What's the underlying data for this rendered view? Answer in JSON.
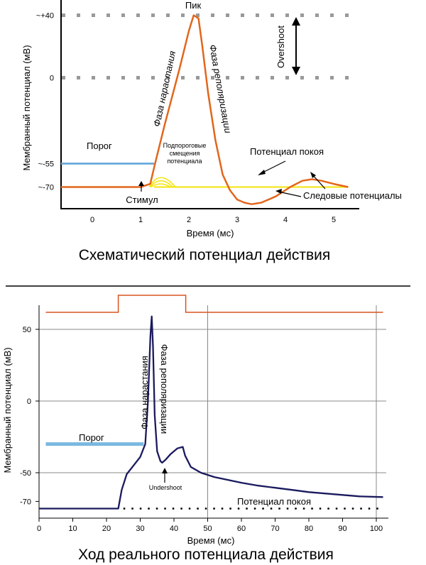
{
  "chart_data": [
    {
      "type": "line",
      "title": "Схематический потенциал действия",
      "xlabel": "Время (мс)",
      "ylabel": "Мембранный потенциал (мВ)",
      "xlim": [
        -0.65,
        5.65
      ],
      "ylim": [
        -80,
        46
      ],
      "x_ticks": [
        0,
        1,
        2,
        3,
        4,
        5
      ],
      "y_ticks": [
        {
          "value": 40,
          "label": "~+40"
        },
        {
          "value": 0,
          "label": "0"
        },
        {
          "value": -55,
          "label": "~-55"
        },
        {
          "value": -70,
          "label": "~-70"
        }
      ],
      "grid": "dotted lines at 40 and 0",
      "series": [
        {
          "name": "",
          "color": "#e2661c",
          "x": [
            -0.65,
            1.0,
            1.2,
            1.3,
            1.5,
            1.8,
            2.0,
            2.1,
            2.2,
            2.28,
            2.4,
            2.55,
            2.7,
            2.85,
            3.0,
            3.15,
            3.3,
            3.5,
            3.8,
            4.1,
            4.35,
            4.55,
            4.75,
            5.0,
            5.3
          ],
          "y": [
            -70,
            -70,
            -68,
            -55,
            -30,
            5,
            30,
            40,
            38,
            20,
            -10,
            -40,
            -62,
            -72,
            -78,
            -80,
            -81,
            -80,
            -76,
            -70,
            -66,
            -65,
            -66,
            -68,
            -70
          ]
        },
        {
          "name": "Порог",
          "color": "#5ba4d8",
          "x": [
            -0.65,
            1.28
          ],
          "y": [
            -55,
            -55
          ]
        },
        {
          "name": "Потенциал покоя",
          "color": "#f3e40a",
          "x": [
            1.28,
            5.3
          ],
          "y": [
            -70,
            -70
          ]
        }
      ],
      "subthreshold_bumps": [
        {
          "x_start": 1.18,
          "x_peak": 1.4,
          "x_end": 1.72,
          "y_peak": -64
        },
        {
          "x_start": 1.2,
          "x_peak": 1.4,
          "x_end": 1.67,
          "y_peak": -66
        },
        {
          "x_start": 1.22,
          "x_peak": 1.4,
          "x_end": 1.62,
          "y_peak": -68
        }
      ],
      "annotations": {
        "peak": "Пик",
        "rising": "Фаза нарастания",
        "repolarization": "Фаза реполяризации",
        "overshoot": "Overshoot",
        "threshold": "Порог",
        "subthreshold": [
          "Подпороговые",
          "смещения",
          "потенциала"
        ],
        "resting": "Потенциал покоя",
        "stimulus": "Стимул",
        "after": "Следовые потенциалы"
      }
    },
    {
      "type": "line",
      "title": "Ход реального потенциала действия",
      "xlabel": "Время (мс)",
      "ylabel": "Мембранный потенциал (мВ)",
      "xlim": [
        0,
        102
      ],
      "ylim": [
        -75,
        62
      ],
      "x_ticks": [
        0,
        10,
        20,
        30,
        40,
        50,
        60,
        70,
        80,
        90,
        100
      ],
      "y_ticks": [
        {
          "value": 50,
          "label": "50"
        },
        {
          "value": 0,
          "label": "0"
        },
        {
          "value": -50,
          "label": "-50"
        },
        {
          "value": -70,
          "label": "-70"
        }
      ],
      "grid": "lines at 50, 0, -50; vertical lines at 50 and 100",
      "stimulus_trace": {
        "color": "#d9531e",
        "x": [
          2,
          23.5,
          23.5,
          43.5,
          43.5,
          102
        ],
        "level": [
          "low",
          "low",
          "high",
          "high",
          "low",
          "low"
        ]
      },
      "series": [
        {
          "name": "",
          "color": "#1a1a5e",
          "x": [
            0,
            23.5,
            24.5,
            26,
            28,
            30,
            31.5,
            32.3,
            33.0,
            33.4,
            33.8,
            34.3,
            35,
            36,
            36.5,
            37.5,
            39,
            41,
            42.6,
            43.3,
            45,
            48,
            52,
            56,
            60,
            65,
            70,
            75,
            80,
            85,
            90,
            95,
            102
          ],
          "y": [
            -75,
            -75,
            -62,
            -51,
            -45,
            -39,
            -30,
            0,
            45,
            59,
            38,
            -10,
            -35,
            -42,
            -43,
            -41,
            -37,
            -33,
            -32,
            -38,
            -46,
            -50,
            -53,
            -55,
            -57,
            -59,
            -60.5,
            -62,
            -63.5,
            -64.5,
            -65.5,
            -66.5,
            -67
          ]
        },
        {
          "name": "Порог",
          "color": "#7ab8e0",
          "x": [
            2,
            31
          ],
          "y": [
            -30,
            -30
          ]
        },
        {
          "name": "Потенциал покоя",
          "color": "#000000",
          "x": [
            25,
            102
          ],
          "y": [
            -75,
            -75
          ]
        }
      ],
      "annotations": {
        "rising": "Фаза нарастания",
        "repolarization": "Фаза реполяризации",
        "threshold": "Порог",
        "undershoot": "Undershoot",
        "resting": "Потенциал покоя"
      }
    }
  ]
}
